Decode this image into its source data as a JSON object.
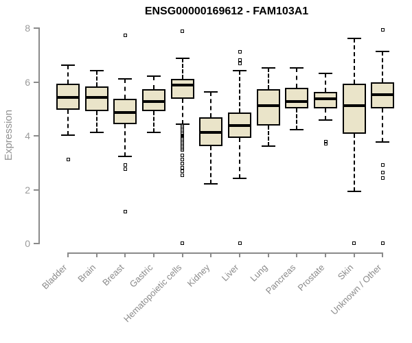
{
  "chart_data": {
    "type": "boxplot",
    "title": "ENSG00000169612 - FAM103A1",
    "ylabel": "Expression",
    "xlabel": "",
    "ylim": [
      0,
      8
    ],
    "yticks": [
      0,
      2,
      4,
      6,
      8
    ],
    "grid": false,
    "legend": "none",
    "categories": [
      "Bladder",
      "Brain",
      "Breast",
      "Gastric",
      "Hematopoietic cells",
      "Kidney",
      "Liver",
      "Lung",
      "Pancreas",
      "Prostate",
      "Skin",
      "Unknown / Other"
    ],
    "series": [
      {
        "category": "Bladder",
        "whisker_low": 4.0,
        "q1": 4.95,
        "median": 5.4,
        "q3": 5.9,
        "whisker_high": 6.6,
        "outliers": [
          3.1
        ]
      },
      {
        "category": "Brain",
        "whisker_low": 4.1,
        "q1": 4.9,
        "median": 5.4,
        "q3": 5.8,
        "whisker_high": 6.4,
        "outliers": []
      },
      {
        "category": "Breast",
        "whisker_low": 3.2,
        "q1": 4.4,
        "median": 4.85,
        "q3": 5.35,
        "whisker_high": 6.1,
        "outliers": [
          7.7,
          2.9,
          2.75,
          1.15
        ]
      },
      {
        "category": "Gastric",
        "whisker_low": 4.1,
        "q1": 4.9,
        "median": 5.25,
        "q3": 5.7,
        "whisker_high": 6.2,
        "outliers": []
      },
      {
        "category": "Hematopoietic cells",
        "whisker_low": 4.4,
        "q1": 5.35,
        "median": 5.85,
        "q3": 6.1,
        "whisker_high": 6.85,
        "outliers": [
          7.85,
          4.35,
          4.3,
          4.25,
          4.2,
          4.15,
          4.1,
          4.05,
          4.0,
          3.95,
          3.9,
          3.85,
          3.8,
          3.75,
          3.7,
          3.65,
          3.6,
          3.55,
          3.5,
          3.45,
          3.25,
          3.1,
          2.95,
          2.8,
          2.65,
          2.5,
          0
        ]
      },
      {
        "category": "Kidney",
        "whisker_low": 2.2,
        "q1": 3.6,
        "median": 4.1,
        "q3": 4.65,
        "whisker_high": 5.6,
        "outliers": []
      },
      {
        "category": "Liver",
        "whisker_low": 2.4,
        "q1": 3.9,
        "median": 4.35,
        "q3": 4.85,
        "whisker_high": 6.4,
        "outliers": [
          7.1,
          6.8,
          6.65,
          0
        ]
      },
      {
        "category": "Lung",
        "whisker_low": 3.6,
        "q1": 4.35,
        "median": 5.1,
        "q3": 5.7,
        "whisker_high": 6.5,
        "outliers": []
      },
      {
        "category": "Pancreas",
        "whisker_low": 4.2,
        "q1": 5.0,
        "median": 5.25,
        "q3": 5.75,
        "whisker_high": 6.5,
        "outliers": []
      },
      {
        "category": "Prostate",
        "whisker_low": 4.55,
        "q1": 5.0,
        "median": 5.35,
        "q3": 5.6,
        "whisker_high": 6.3,
        "outliers": [
          3.75,
          3.68
        ]
      },
      {
        "category": "Skin",
        "whisker_low": 1.9,
        "q1": 4.05,
        "median": 5.1,
        "q3": 5.9,
        "whisker_high": 7.6,
        "outliers": [
          0
        ]
      },
      {
        "category": "Unknown / Other",
        "whisker_low": 3.75,
        "q1": 5.0,
        "median": 5.5,
        "q3": 5.95,
        "whisker_high": 7.1,
        "outliers": [
          7.9,
          2.9,
          2.6,
          2.4,
          0
        ]
      }
    ],
    "colors": {
      "box_fill": "#eae4c9",
      "box_border": "#000000",
      "median": "#000000",
      "whisker": "#000000",
      "outlier": "#000000",
      "axis": "#8a8a8a",
      "tick_label": "#9a9a9a",
      "category_label": "#8a8a8a",
      "title": "#000000",
      "background": "#ffffff"
    },
    "layout": {
      "plot_top_y_value": 8,
      "plot_bottom_y_value": 0,
      "x_label_rotation_deg": 45
    }
  }
}
